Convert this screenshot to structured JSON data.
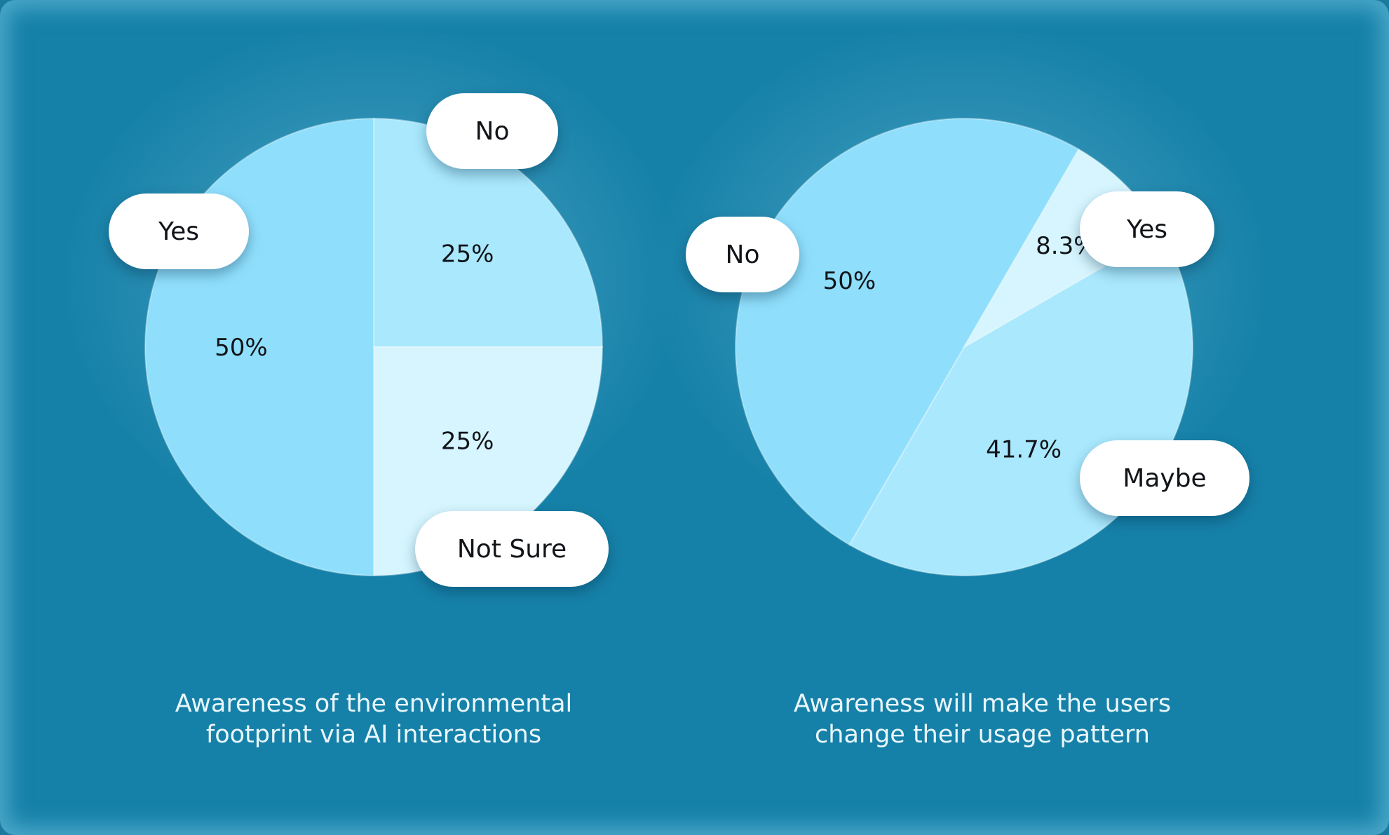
{
  "chart_data": [
    {
      "type": "pie",
      "caption_lines": [
        "Awareness of the environmental",
        "footprint via AI interactions"
      ],
      "slices": [
        {
          "label": "No",
          "value": 25,
          "value_label": "25%",
          "color": "#a9e8fd"
        },
        {
          "label": "Not Sure",
          "value": 25,
          "value_label": "25%",
          "color": "#d6f5fe"
        },
        {
          "label": "Yes",
          "value": 50,
          "value_label": "50%",
          "color": "#8fdffc"
        }
      ]
    },
    {
      "type": "pie",
      "caption_lines": [
        "Awareness will make the users",
        "change their usage pattern"
      ],
      "slices": [
        {
          "label": "Yes",
          "value": 41.7,
          "value_label": "41.7%",
          "color": "#a9e8fd"
        },
        {
          "label": "Maybe",
          "value": 50,
          "value_label": "50%",
          "color": "#8fdffc"
        },
        {
          "label": "No",
          "value": 8.3,
          "value_label": "8.3%",
          "color": "#d6f5fe"
        }
      ]
    }
  ]
}
